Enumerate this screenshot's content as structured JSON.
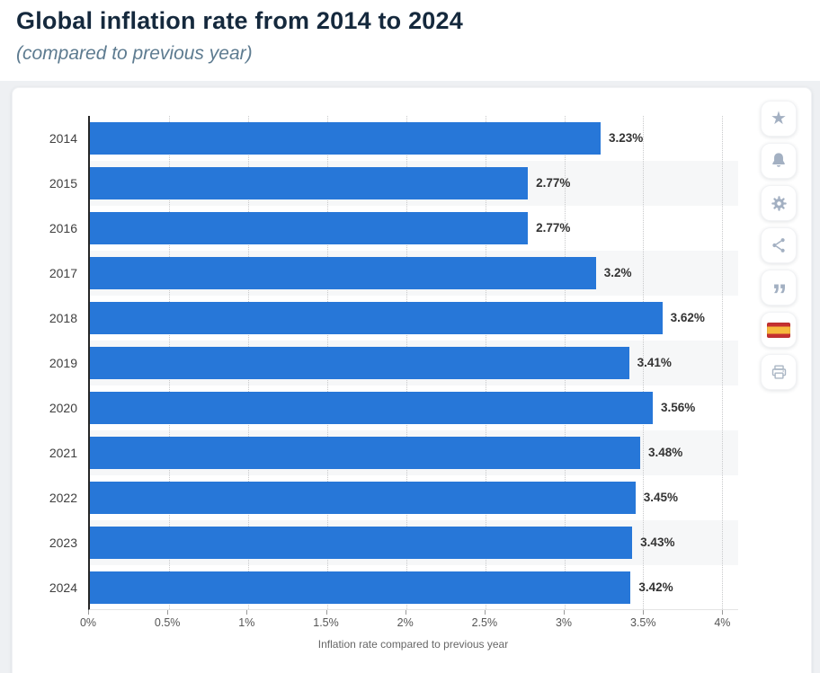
{
  "header": {
    "title": "Global inflation rate from 2014 to 2024",
    "subtitle": "(compared to previous year)"
  },
  "chart_data": {
    "type": "bar",
    "orientation": "horizontal",
    "title": "Global inflation rate from 2014 to 2024",
    "subtitle": "(compared to previous year)",
    "categories": [
      "2014",
      "2015",
      "2016",
      "2017",
      "2018",
      "2019",
      "2020",
      "2021",
      "2022",
      "2023",
      "2024"
    ],
    "values": [
      3.23,
      2.77,
      2.77,
      3.2,
      3.62,
      3.41,
      3.56,
      3.48,
      3.45,
      3.43,
      3.42
    ],
    "bar_labels": [
      "3.23%",
      "2.77%",
      "2.77%",
      "3.2%",
      "3.62%",
      "3.41%",
      "3.56%",
      "3.48%",
      "3.45%",
      "3.43%",
      "3.42%"
    ],
    "xlabel": "Inflation rate compared to previous year",
    "ylabel": "",
    "x_ticks": [
      "0%",
      "0.5%",
      "1%",
      "1.5%",
      "2%",
      "2.5%",
      "3%",
      "3.5%",
      "4%"
    ],
    "xlim": [
      0,
      4
    ],
    "x_view_max": 4.1,
    "grid": "vertical-dotted",
    "legend": "none",
    "bar_color": "#2777d8",
    "band_color": "#f6f7f8",
    "axis_color": "#262626"
  },
  "toolbar": {
    "buttons": [
      {
        "id": "favorite",
        "icon": "star-icon"
      },
      {
        "id": "notifications",
        "icon": "bell-icon"
      },
      {
        "id": "settings",
        "icon": "gear-icon"
      },
      {
        "id": "share",
        "icon": "share-icon"
      },
      {
        "id": "cite",
        "icon": "quote-icon"
      },
      {
        "id": "language-spanish",
        "icon": "spain-flag-icon"
      },
      {
        "id": "print",
        "icon": "printer-icon"
      }
    ],
    "quote_glyph": "”",
    "star_glyph": "★"
  }
}
